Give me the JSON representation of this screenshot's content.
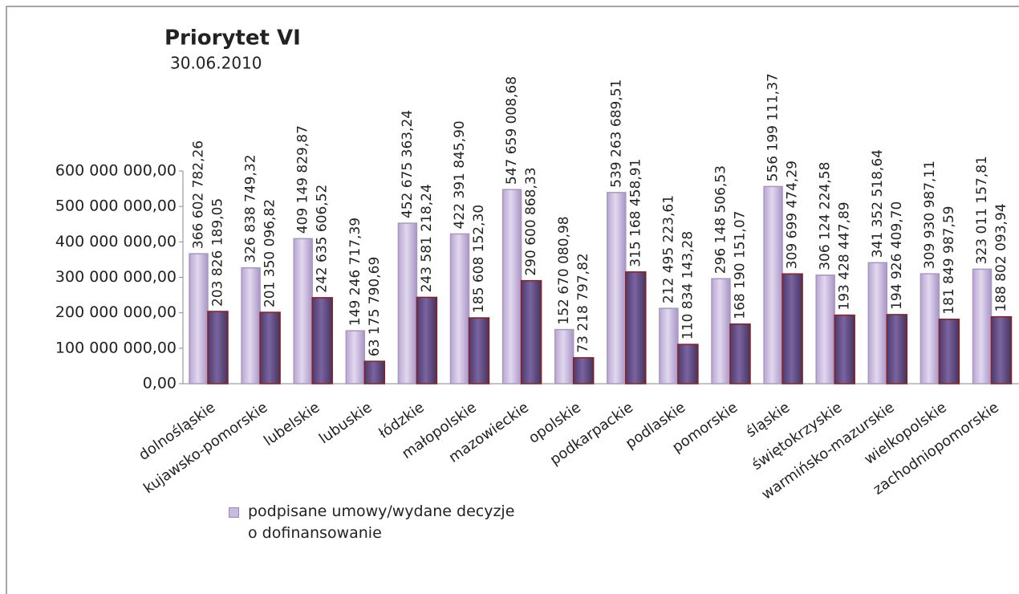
{
  "chart_data": {
    "type": "bar",
    "title": "Priorytet VI",
    "subtitle": "30.06.2010",
    "categories": [
      "dolnośląskie",
      "kujawsko-pomorskie",
      "lubelskie",
      "lubuskie",
      "łódzkie",
      "małopolskie",
      "mazowieckie",
      "opolskie",
      "podkarpackie",
      "podlaskie",
      "pomorskie",
      "śląskie",
      "świętokrzyskie",
      "warmińsko-mazurskie",
      "wielkopolskie",
      "zachodniopomorskie"
    ],
    "series": [
      {
        "name": "podpisane umowy/wydane decyzje o dofinansowanie",
        "color": "#c9b9de",
        "values": [
          366602782.26,
          326838749.32,
          409149829.87,
          149246717.39,
          452675363.24,
          422391845.9,
          547659008.68,
          152670080.98,
          539263689.51,
          212495223.61,
          296148506.53,
          556199111.37,
          306124224.58,
          341352518.64,
          309930987.11,
          323011157.81
        ],
        "value_labels": [
          "366 602 782,26",
          "326 838 749,32",
          "409 149 829,87",
          "149 246 717,39",
          "452 675 363,24",
          "422 391 845,90",
          "547 659 008,68",
          "152 670 080,98",
          "539 263 689,51",
          "212 495 223,61",
          "296 148 506,53",
          "556 199 111,37",
          "306 124 224,58",
          "341 352 518,64",
          "309 930 987,11",
          "323 011 157,81"
        ]
      },
      {
        "color": "#5c4780",
        "values": [
          203826189.05,
          201350096.82,
          242635606.52,
          63175790.69,
          243581218.24,
          185608152.3,
          290600868.33,
          73218797.82,
          315168458.91,
          110834143.28,
          168190151.07,
          309699474.29,
          193428447.89,
          194926409.7,
          181849987.59,
          188802093.94
        ],
        "value_labels": [
          "203 826 189,05",
          "201 350 096,82",
          "242 635 606,52",
          "63 175 790,69",
          "243 581 218,24",
          "185 608 152,30",
          "290 600 868,33",
          "73 218 797,82",
          "315 168 458,91",
          "110 834 143,28",
          "168 190 151,07",
          "309 699 474,29",
          "193 428 447,89",
          "194 926 409,70",
          "181 849 987,59",
          "188 802 093,94"
        ]
      }
    ],
    "ylim": [
      0,
      600000000
    ],
    "yticks": [
      {
        "value": 0,
        "label": "0,00"
      },
      {
        "value": 100000000,
        "label": "100 000 000,00"
      },
      {
        "value": 200000000,
        "label": "200 000 000,00"
      },
      {
        "value": 300000000,
        "label": "300 000 000,00"
      },
      {
        "value": 400000000,
        "label": "400 000 000,00"
      },
      {
        "value": 500000000,
        "label": "500 000 000,00"
      },
      {
        "value": 600000000,
        "label": "600 000 000,00"
      }
    ],
    "legend": "bottom-left"
  }
}
